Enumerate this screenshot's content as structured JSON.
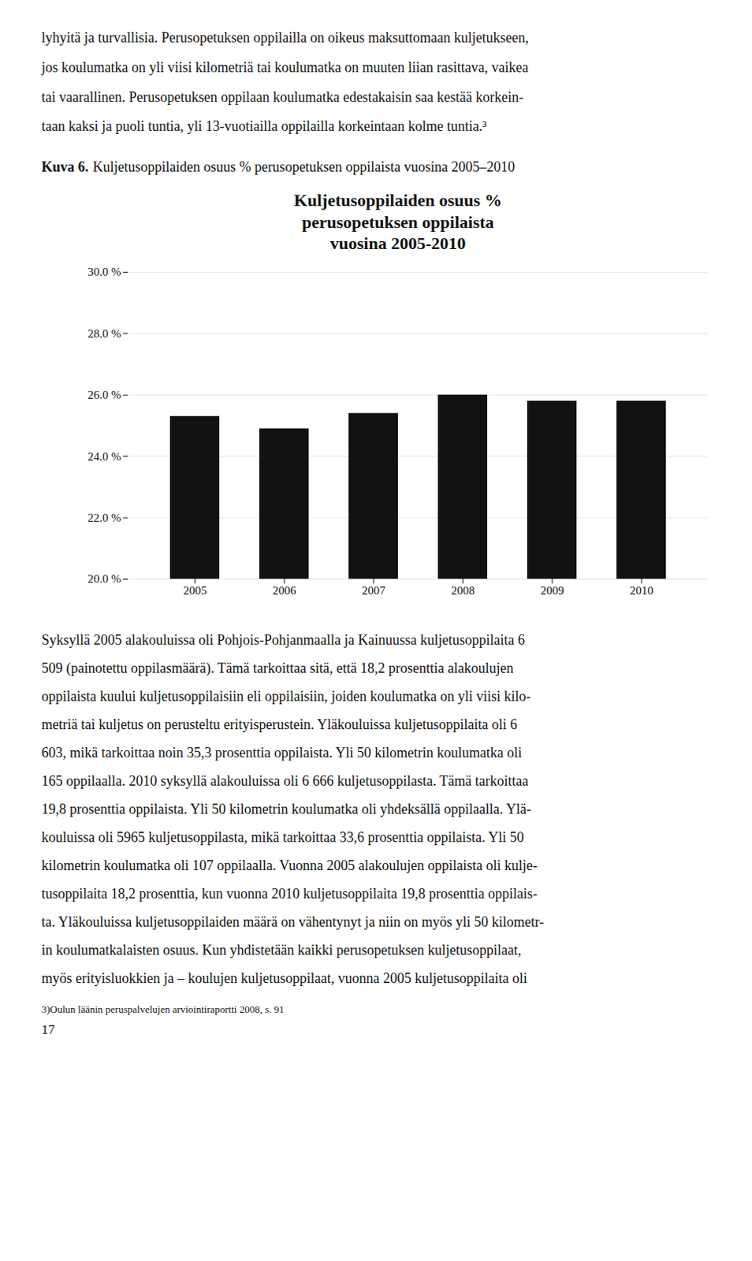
{
  "text_above": [
    "lyhyitä ja turvallisia. Perusopetuksen oppilailla on oikeus maksuttomaan kuljetukseen,",
    "jos koulumatka on yli viisi kilometriä tai koulumatka on muuten liian rasittava, vaikea",
    "tai vaarallinen. Perusopetuksen oppilaan koulumatka edestakaisin saa kestää korkein-",
    "taan kaksi ja puoli tuntia, yli 13-vuotiailla oppilailla korkeintaan kolme tuntia.³"
  ],
  "caption_label": "Kuva 6.",
  "caption": "Kuljetusoppilaiden osuus % perusopetuksen oppilaista vuosina 2005–2010",
  "chart_data": {
    "type": "bar",
    "title": "Kuljetusoppilaiden osuus %\nperusopetuksen oppilaista\nvuosina 2005-2010",
    "categories": [
      "2005",
      "2006",
      "2007",
      "2008",
      "2009",
      "2010"
    ],
    "values": [
      25.3,
      24.9,
      25.4,
      26.0,
      25.8,
      25.8
    ],
    "ylim": [
      20.0,
      30.0
    ],
    "yticks": [
      {
        "value": 20.0,
        "label": "20.0 %"
      },
      {
        "value": 22.0,
        "label": "22.0 %"
      },
      {
        "value": 24.0,
        "label": "24.0 %"
      },
      {
        "value": 26.0,
        "label": "26.0 %"
      },
      {
        "value": 28.0,
        "label": "28.0 %"
      },
      {
        "value": 30.0,
        "label": "30.0 %"
      }
    ],
    "grid": true
  },
  "text_below": [
    "Syksyllä 2005 alakouluissa oli Pohjois-Pohjanmaalla ja Kainuussa kuljetusoppilaita 6",
    "509 (painotettu oppilasmäärä). Tämä tarkoittaa sitä, että 18,2 prosenttia alakoulujen",
    "oppilaista kuului kuljetusoppilaisiin eli oppilaisiin, joiden koulumatka on yli viisi kilo-",
    "metriä tai kuljetus on perusteltu erityisperustein. Yläkouluissa kuljetusoppilaita oli 6",
    "603, mikä tarkoittaa noin 35,3 prosenttia oppilaista. Yli 50 kilometrin koulumatka oli",
    "165 oppilaalla. 2010 syksyllä alakouluissa oli 6 666 kuljetusoppilasta. Tämä tarkoittaa",
    "19,8 prosenttia oppilaista. Yli 50 kilometrin koulumatka oli yhdeksällä oppilaalla. Ylä-",
    "kouluissa oli 5965 kuljetusoppilasta, mikä tarkoittaa 33,6 prosenttia oppilaista. Yli 50",
    "kilometrin koulumatka oli 107 oppilaalla. Vuonna 2005 alakoulujen oppilaista oli kulje-",
    "tusoppilaita 18,2 prosenttia, kun vuonna 2010 kuljetusoppilaita 19,8 prosenttia oppilais-",
    "ta. Yläkouluissa kuljetusoppilaiden määrä on vähentynyt ja niin on myös yli 50 kilometr-",
    "in koulumatkalaisten osuus. Kun yhdistetään kaikki perusopetuksen kuljetusoppilaat,",
    "myös erityisluokkien ja – koulujen kuljetusoppilaat, vuonna 2005 kuljetusoppilaita oli"
  ],
  "footnote": "3)Oulun läänin peruspalvelujen arviointiraportti 2008, s. 91",
  "page_number": "17"
}
